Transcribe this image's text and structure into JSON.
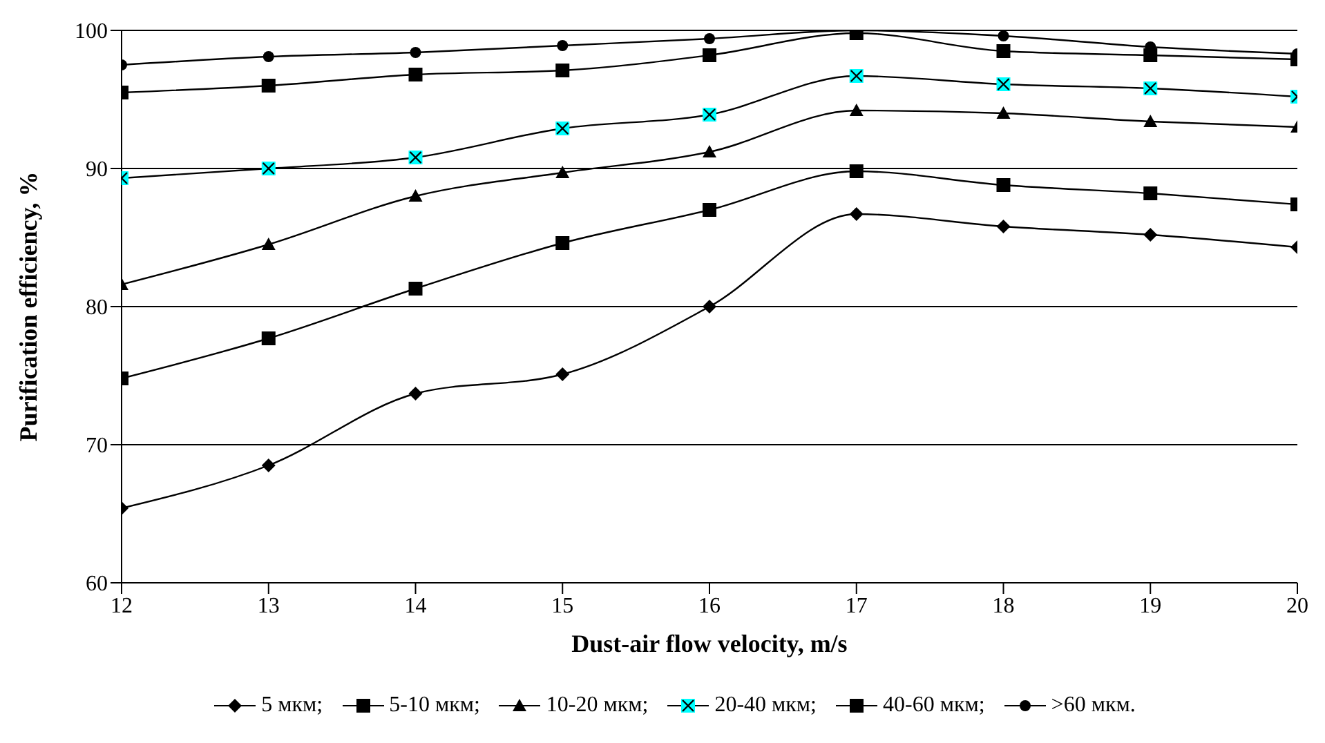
{
  "chart_data": {
    "type": "line",
    "xlabel": "Dust-air flow velocity, m/s",
    "ylabel": "Purification efficiency, %",
    "x": [
      12,
      13,
      14,
      15,
      16,
      17,
      18,
      19,
      20
    ],
    "xlim": [
      12,
      20
    ],
    "xticks": [
      12,
      13,
      14,
      15,
      16,
      17,
      18,
      19,
      20
    ],
    "ylim": [
      60,
      100
    ],
    "yticks": [
      60,
      70,
      80,
      90,
      100
    ],
    "grid": "y",
    "legend": "bottom",
    "series": [
      {
        "name": "5 мкм;",
        "color": "#000000",
        "marker": "diamond",
        "values": [
          65.4,
          68.5,
          73.7,
          75.1,
          80.0,
          86.7,
          85.8,
          85.2,
          84.3
        ]
      },
      {
        "name": "5-10 мкм;",
        "color": "#000000",
        "marker": "square",
        "values": [
          74.8,
          77.7,
          81.3,
          84.6,
          87.0,
          89.8,
          88.8,
          88.2,
          87.4
        ]
      },
      {
        "name": "10-20 мкм;",
        "color": "#000000",
        "marker": "triangle",
        "values": [
          81.6,
          84.5,
          88.0,
          89.7,
          91.2,
          94.2,
          94.0,
          93.4,
          93.0
        ]
      },
      {
        "name": "20-40 мкм;",
        "color": "#00ffff",
        "marker": "square",
        "values": [
          89.3,
          90.0,
          90.8,
          92.9,
          93.9,
          96.7,
          96.1,
          95.8,
          95.2
        ]
      },
      {
        "name": "40-60 мкм;",
        "color": "#000000",
        "marker": "square",
        "values": [
          95.5,
          96.0,
          96.8,
          97.1,
          98.2,
          99.8,
          98.5,
          98.2,
          97.9
        ]
      },
      {
        "name": ">60 мкм.",
        "color": "#000000",
        "marker": "circle",
        "values": [
          97.5,
          98.1,
          98.4,
          98.9,
          99.4,
          100.0,
          99.6,
          98.8,
          98.3
        ]
      }
    ]
  }
}
